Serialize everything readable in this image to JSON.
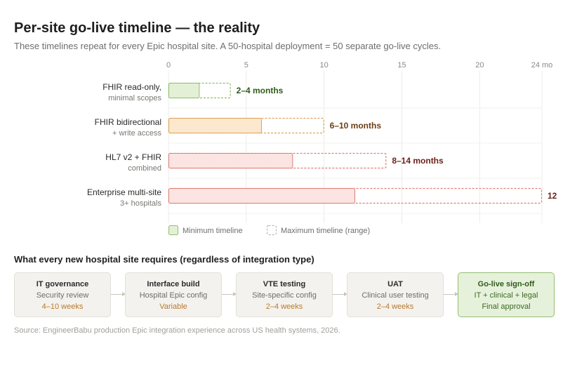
{
  "header": {
    "title": "Per-site go-live timeline — the reality",
    "subtitle": "These timelines repeat for every Epic hospital site. A 50-hospital deployment = 50 separate go-live cycles."
  },
  "chart_data": {
    "type": "bar",
    "orientation": "horizontal",
    "x_axis": {
      "ticks": [
        0,
        5,
        10,
        15,
        20,
        24
      ],
      "tick_labels": [
        "0",
        "5",
        "10",
        "15",
        "20",
        "24 mo"
      ],
      "range": [
        0,
        24
      ],
      "grid": true
    },
    "categories": [
      {
        "line1": "FHIR read-only,",
        "line2": "minimal scopes"
      },
      {
        "line1": "FHIR bidirectional",
        "line2": "+ write access"
      },
      {
        "line1": "HL7 v2 + FHIR",
        "line2": "combined"
      },
      {
        "line1": "Enterprise multi-site",
        "line2": "3+ hospitals"
      }
    ],
    "series": [
      {
        "name": "Minimum timeline",
        "values": [
          2,
          6,
          8,
          12
        ]
      },
      {
        "name": "Maximum timeline (range)",
        "values": [
          4,
          10,
          14,
          24
        ]
      }
    ],
    "data_labels": [
      "2–4 months",
      "6–10 months",
      "8–14 months",
      "12"
    ],
    "colors": [
      {
        "fill": "#e4f0d6",
        "stroke": "#8fbf6a",
        "label": "#2f5a1a"
      },
      {
        "fill": "#fbe8cf",
        "stroke": "#e0a35a",
        "label": "#6b3e12"
      },
      {
        "fill": "#fbe4e1",
        "stroke": "#de7f76",
        "label": "#6b1f18"
      },
      {
        "fill": "#fbe4e1",
        "stroke": "#de7f76",
        "label": "#6b1f18"
      }
    ],
    "legend": {
      "placement": "bottom-left",
      "min_label": "Minimum timeline",
      "min_fill": "#e4f0d6",
      "min_stroke": "#8fbf6a",
      "max_label": "Maximum timeline (range)",
      "max_stroke": "#b5b2ab"
    }
  },
  "requirements": {
    "title": "What every new hospital site requires (regardless of integration type)",
    "steps": [
      {
        "title": "IT governance",
        "subtitle": "Security review",
        "duration": "4–10 weeks"
      },
      {
        "title": "Interface build",
        "subtitle": "Hospital Epic config",
        "duration": "Variable"
      },
      {
        "title": "VTE testing",
        "subtitle": "Site-specific config",
        "duration": "2–4 weeks"
      },
      {
        "title": "UAT",
        "subtitle": "Clinical user testing",
        "duration": "2–4 weeks"
      },
      {
        "title": "Go-live sign-off",
        "subtitle": "IT + clinical + legal",
        "duration": "Final approval"
      }
    ]
  },
  "footer": {
    "source": "Source: EngineerBabu production Epic integration experience across US health systems, 2026."
  }
}
